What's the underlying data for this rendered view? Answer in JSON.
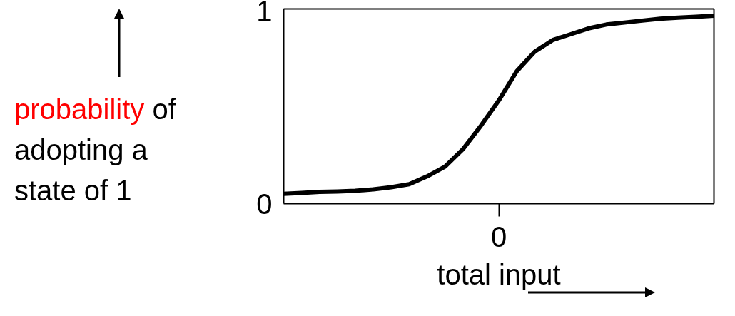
{
  "chart_data": {
    "type": "line",
    "xlabel": "total input",
    "ylabel": "probability of\nadopting a\nstate of 1",
    "categories": [
      null,
      null,
      null,
      null,
      null,
      null,
      null,
      null,
      null,
      null,
      null,
      null,
      "0",
      null,
      null,
      null,
      null,
      null,
      null,
      null,
      null,
      null,
      null,
      null,
      null
    ],
    "series": [
      {
        "color": "#000000",
        "values": [
          0.05,
          0.055,
          0.06,
          0.062,
          0.066,
          0.073,
          0.084,
          0.1,
          0.14,
          0.19,
          0.28,
          0.4,
          0.53,
          0.68,
          0.78,
          0.84,
          0.87,
          0.9,
          0.92,
          0.93,
          0.94,
          0.95,
          0.955,
          0.96,
          0.965
        ]
      }
    ],
    "ylim": [
      0,
      1
    ],
    "yticks": [
      0,
      1
    ],
    "grid": false,
    "legend": false,
    "marker": "none",
    "line_style": "solid"
  }
}
